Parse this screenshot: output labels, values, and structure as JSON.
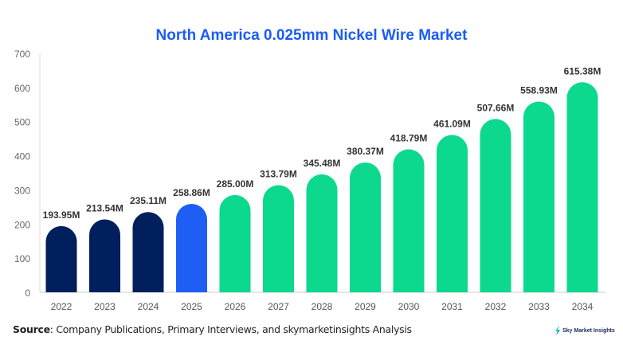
{
  "chart_data": {
    "type": "bar",
    "title": "North America 0.025mm Nickel Wire Market",
    "categories": [
      "2022",
      "2023",
      "2024",
      "2025",
      "2026",
      "2027",
      "2028",
      "2029",
      "2030",
      "2031",
      "2032",
      "2033",
      "2034"
    ],
    "values": [
      193.95,
      213.54,
      235.11,
      258.86,
      285.0,
      313.79,
      345.48,
      380.37,
      418.79,
      461.09,
      507.66,
      558.93,
      615.38
    ],
    "data_labels": [
      "193.95M",
      "213.54M",
      "235.11M",
      "258.86M",
      "285.00M",
      "313.79M",
      "345.48M",
      "380.37M",
      "418.79M",
      "461.09M",
      "507.66M",
      "558.93M",
      "615.38M"
    ],
    "ylim": [
      0,
      700
    ],
    "yticks": [
      0,
      100,
      200,
      300,
      400,
      500,
      600,
      700
    ],
    "grid": false,
    "xlabel": "",
    "ylabel": "",
    "colors": {
      "historical": "#001f5c",
      "current": "#1f5ef5",
      "forecast": "#0cd98e",
      "title": "#1a5cf5"
    },
    "bar_color_groups": [
      "historical",
      "historical",
      "historical",
      "current",
      "forecast",
      "forecast",
      "forecast",
      "forecast",
      "forecast",
      "forecast",
      "forecast",
      "forecast",
      "forecast"
    ]
  },
  "footer": {
    "source_label": "Source",
    "source_text": ": Company Publications, Primary Interviews, and skymarketinsights Analysis",
    "logo_text": "Sky Market Insights"
  }
}
